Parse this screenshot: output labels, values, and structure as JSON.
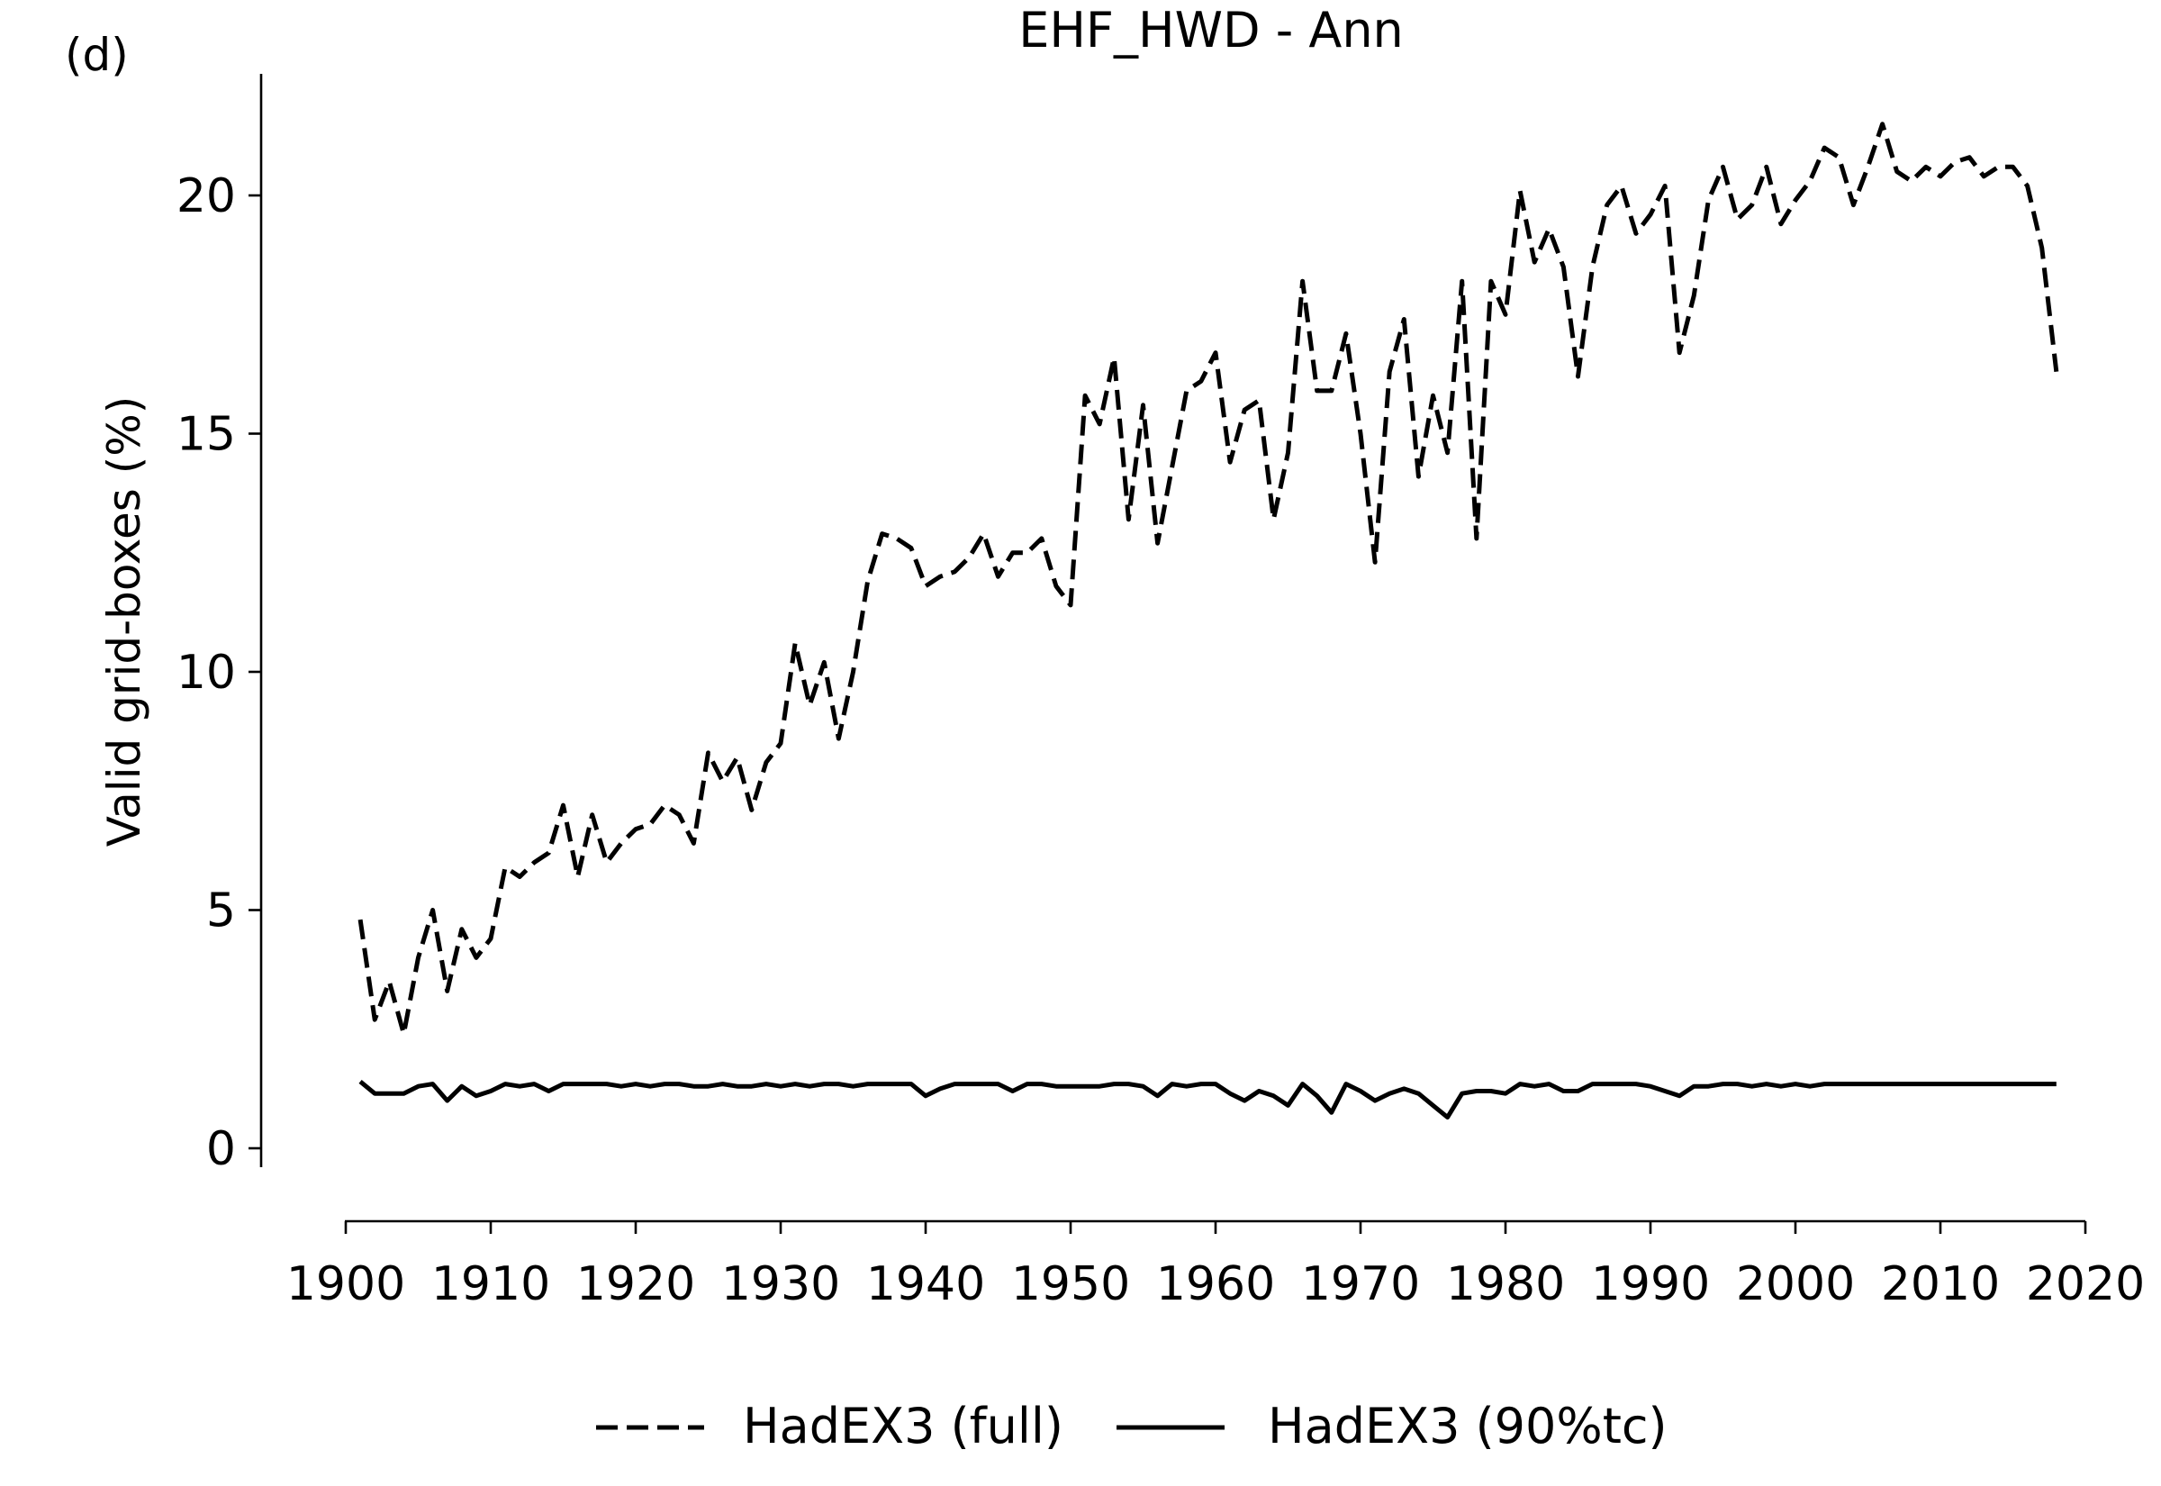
{
  "panel_label": "(d)",
  "chart_data": {
    "type": "line",
    "title": "EHF_HWD - Ann",
    "xlabel": "",
    "ylabel": "Valid grid-boxes (%)",
    "xlim": [
      1900,
      2020
    ],
    "ylim": [
      -0.4,
      22.5
    ],
    "xticks": [
      1900,
      1910,
      1920,
      1930,
      1940,
      1950,
      1960,
      1970,
      1980,
      1990,
      2000,
      2010,
      2020
    ],
    "yticks": [
      0,
      5,
      10,
      15,
      20
    ],
    "grid": false,
    "legend_position": "bottom-center",
    "x": [
      1901,
      1902,
      1903,
      1904,
      1905,
      1906,
      1907,
      1908,
      1909,
      1910,
      1911,
      1912,
      1913,
      1914,
      1915,
      1916,
      1917,
      1918,
      1919,
      1920,
      1921,
      1922,
      1923,
      1924,
      1925,
      1926,
      1927,
      1928,
      1929,
      1930,
      1931,
      1932,
      1933,
      1934,
      1935,
      1936,
      1937,
      1938,
      1939,
      1940,
      1941,
      1942,
      1943,
      1944,
      1945,
      1946,
      1947,
      1948,
      1949,
      1950,
      1951,
      1952,
      1953,
      1954,
      1955,
      1956,
      1957,
      1958,
      1959,
      1960,
      1961,
      1962,
      1963,
      1964,
      1965,
      1966,
      1967,
      1968,
      1969,
      1970,
      1971,
      1972,
      1973,
      1974,
      1975,
      1976,
      1977,
      1978,
      1979,
      1980,
      1981,
      1982,
      1983,
      1984,
      1985,
      1986,
      1987,
      1988,
      1989,
      1990,
      1991,
      1992,
      1993,
      1994,
      1995,
      1996,
      1997,
      1998,
      1999,
      2000,
      2001,
      2002,
      2003,
      2004,
      2005,
      2006,
      2007,
      2008,
      2009,
      2010,
      2011,
      2012,
      2013,
      2014,
      2015,
      2016,
      2017,
      2018
    ],
    "series": [
      {
        "name": "HadEX3 (full)",
        "style": "dashed",
        "color": "#000000",
        "values": [
          4.8,
          2.7,
          3.5,
          2.4,
          4.0,
          5.0,
          3.3,
          4.6,
          4.0,
          4.4,
          5.9,
          5.7,
          6.0,
          6.2,
          7.2,
          5.7,
          7.0,
          6.0,
          6.4,
          6.7,
          6.8,
          7.2,
          7.0,
          6.4,
          8.3,
          7.7,
          8.2,
          7.1,
          8.1,
          8.5,
          10.6,
          9.3,
          10.2,
          8.6,
          10.0,
          11.9,
          12.9,
          12.8,
          12.6,
          11.8,
          12.0,
          12.1,
          12.4,
          12.9,
          12.0,
          12.5,
          12.5,
          12.8,
          11.8,
          11.4,
          15.8,
          15.2,
          16.6,
          13.2,
          15.6,
          12.7,
          14.3,
          15.9,
          16.1,
          16.7,
          14.4,
          15.5,
          15.7,
          13.2,
          14.6,
          18.2,
          15.9,
          15.9,
          17.1,
          15.0,
          12.3,
          16.3,
          17.4,
          14.1,
          15.8,
          14.6,
          18.2,
          12.8,
          18.2,
          17.5,
          20.1,
          18.6,
          19.3,
          18.5,
          16.2,
          18.5,
          19.8,
          20.2,
          19.2,
          19.6,
          20.2,
          16.7,
          17.9,
          19.9,
          20.6,
          19.5,
          19.8,
          20.6,
          19.4,
          19.9,
          20.3,
          21.0,
          20.8,
          19.8,
          20.6,
          21.5,
          20.5,
          20.3,
          20.6,
          20.4,
          20.7,
          20.8,
          20.4,
          20.6,
          20.6,
          20.2,
          18.9,
          16.3
        ]
      },
      {
        "name": "HadEX3 (90%tc)",
        "style": "solid",
        "color": "#000000",
        "values": [
          1.4,
          1.15,
          1.15,
          1.15,
          1.3,
          1.35,
          1.0,
          1.3,
          1.1,
          1.2,
          1.35,
          1.3,
          1.35,
          1.2,
          1.35,
          1.35,
          1.35,
          1.35,
          1.3,
          1.35,
          1.3,
          1.35,
          1.35,
          1.3,
          1.3,
          1.35,
          1.3,
          1.3,
          1.35,
          1.3,
          1.35,
          1.3,
          1.35,
          1.35,
          1.3,
          1.35,
          1.35,
          1.35,
          1.35,
          1.1,
          1.25,
          1.35,
          1.35,
          1.35,
          1.35,
          1.2,
          1.35,
          1.35,
          1.3,
          1.3,
          1.3,
          1.3,
          1.35,
          1.35,
          1.3,
          1.1,
          1.35,
          1.3,
          1.35,
          1.35,
          1.15,
          1.0,
          1.2,
          1.1,
          0.9,
          1.35,
          1.1,
          0.75,
          1.35,
          1.2,
          1.0,
          1.15,
          1.25,
          1.15,
          0.9,
          0.65,
          1.15,
          1.2,
          1.2,
          1.15,
          1.35,
          1.3,
          1.35,
          1.2,
          1.2,
          1.35,
          1.35,
          1.35,
          1.35,
          1.3,
          1.2,
          1.1,
          1.3,
          1.3,
          1.35,
          1.35,
          1.3,
          1.35,
          1.3,
          1.35,
          1.3,
          1.35,
          1.35,
          1.35,
          1.35,
          1.35,
          1.35,
          1.35,
          1.35,
          1.35,
          1.35,
          1.35,
          1.35,
          1.35,
          1.35,
          1.35,
          1.35,
          1.35
        ]
      }
    ]
  }
}
